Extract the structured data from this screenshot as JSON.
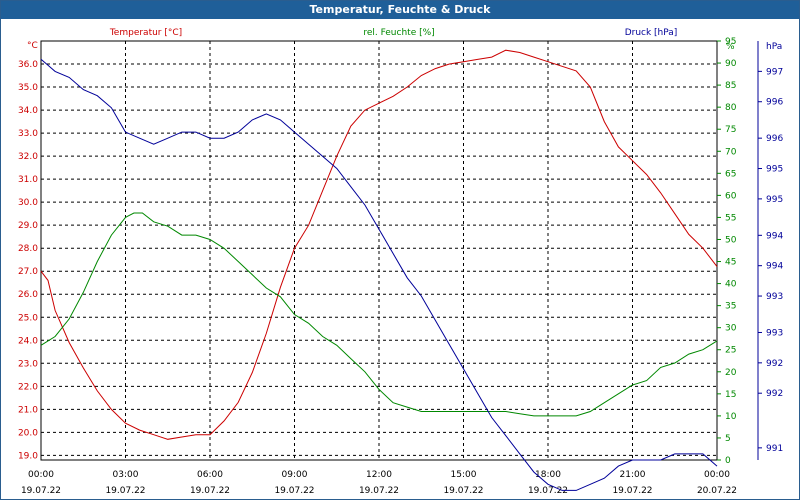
{
  "window": {
    "title": "Temperatur, Feuchte & Druck"
  },
  "chart_data": {
    "type": "line",
    "title": "Temperatur, Feuchte & Druck",
    "x_ticks": [
      {
        "time": "00:00",
        "date": "19.07.22"
      },
      {
        "time": "03:00",
        "date": "19.07.22"
      },
      {
        "time": "06:00",
        "date": "19.07.22"
      },
      {
        "time": "09:00",
        "date": "19.07.22"
      },
      {
        "time": "12:00",
        "date": "19.07.22"
      },
      {
        "time": "15:00",
        "date": "19.07.22"
      },
      {
        "time": "18:00",
        "date": "19.07.22"
      },
      {
        "time": "21:00",
        "date": "19.07.22"
      },
      {
        "time": "00:00",
        "date": "20.07.22"
      }
    ],
    "xlim": [
      0,
      24
    ],
    "axes": {
      "temperature": {
        "label": "Temperatur [°C]",
        "unit": "°C",
        "color": "#cc0000",
        "ylim": [
          18.8,
          37.0
        ],
        "ticks": [
          "19.0",
          "20.0",
          "21.0",
          "22.0",
          "23.0",
          "24.0",
          "25.0",
          "26.0",
          "27.0",
          "28.0",
          "29.0",
          "30.0",
          "31.0",
          "32.0",
          "33.0",
          "34.0",
          "35.0",
          "36.0"
        ]
      },
      "humidity": {
        "label": "rel. Feuchte [%]",
        "unit": "%",
        "color": "#008800",
        "ylim": [
          0,
          95
        ],
        "ticks": [
          "0",
          "5",
          "10",
          "15",
          "20",
          "25",
          "30",
          "35",
          "40",
          "45",
          "50",
          "55",
          "60",
          "65",
          "70",
          "75",
          "80",
          "85",
          "90",
          "95"
        ]
      },
      "pressure": {
        "label": "Druck [hPa]",
        "unit": "hPa",
        "color": "#000099",
        "ylim": [
          990.8,
          997.7
        ],
        "ticks": [
          {
            "label": "991",
            "v": 991.0
          },
          {
            "label": "992",
            "v": 991.9
          },
          {
            "label": "992",
            "v": 992.4
          },
          {
            "label": "993",
            "v": 992.9
          },
          {
            "label": "993",
            "v": 993.5
          },
          {
            "label": "994",
            "v": 994.0
          },
          {
            "label": "994",
            "v": 994.5
          },
          {
            "label": "995",
            "v": 995.1
          },
          {
            "label": "995",
            "v": 995.6
          },
          {
            "label": "996",
            "v": 996.1
          },
          {
            "label": "996",
            "v": 996.7
          },
          {
            "label": "997",
            "v": 997.2
          }
        ]
      }
    },
    "series": [
      {
        "name": "Temperatur [°C]",
        "axis": "temperature",
        "color": "#cc0000",
        "x": [
          0,
          0.25,
          0.5,
          1,
          1.5,
          2,
          2.5,
          3,
          3.5,
          4,
          4.5,
          5,
          5.5,
          6,
          6.5,
          7,
          7.5,
          8,
          8.5,
          9,
          9.5,
          10,
          10.5,
          11,
          11.5,
          12,
          12.5,
          13,
          13.5,
          14,
          14.5,
          15,
          15.5,
          16,
          16.5,
          17,
          17.5,
          18,
          18.5,
          19,
          19.5,
          20,
          20.5,
          21,
          21.5,
          22,
          22.5,
          23,
          23.5,
          24
        ],
        "values": [
          27.0,
          26.6,
          25.3,
          23.9,
          22.8,
          21.8,
          21.0,
          20.4,
          20.1,
          19.9,
          19.7,
          19.8,
          19.9,
          19.9,
          20.5,
          21.3,
          22.6,
          24.3,
          26.3,
          28.0,
          29.0,
          30.5,
          32.0,
          33.3,
          34.0,
          34.3,
          34.6,
          35.0,
          35.5,
          35.8,
          36.0,
          36.1,
          36.2,
          36.3,
          36.6,
          36.5,
          36.3,
          36.1,
          35.9,
          35.7,
          35.0,
          33.5,
          32.4,
          31.8,
          31.2,
          30.4,
          29.5,
          28.6,
          28.0,
          27.2
        ]
      },
      {
        "name": "rel. Feuchte [%]",
        "axis": "humidity",
        "color": "#008800",
        "x": [
          0,
          0.5,
          1,
          1.5,
          2,
          2.5,
          3,
          3.3,
          3.6,
          4,
          4.5,
          5,
          5.5,
          6,
          6.5,
          7,
          7.5,
          8,
          8.5,
          9,
          9.5,
          10,
          10.5,
          11,
          11.5,
          12,
          12.5,
          13,
          13.5,
          14,
          14.5,
          15,
          15.5,
          16,
          16.5,
          17,
          17.5,
          18,
          18.5,
          19,
          19.5,
          20,
          20.5,
          21,
          21.5,
          22,
          22.5,
          23,
          23.5,
          24
        ],
        "values": [
          26,
          28,
          32,
          38,
          45,
          51,
          55,
          56,
          56,
          54,
          53,
          51,
          51,
          50,
          48,
          45,
          42,
          39,
          37,
          33,
          31,
          28,
          26,
          23,
          20,
          16,
          13,
          12,
          11,
          11,
          11,
          11,
          11,
          11,
          11,
          10.5,
          10,
          10,
          10,
          10,
          11,
          13,
          15,
          17,
          18,
          21,
          22,
          24,
          25,
          27
        ]
      },
      {
        "name": "Druck [hPa]",
        "axis": "pressure",
        "color": "#000099",
        "x": [
          0,
          0.25,
          0.5,
          1,
          1.5,
          2,
          2.5,
          3,
          3.5,
          4,
          4.5,
          5,
          5.5,
          6,
          6.5,
          7,
          7.5,
          8,
          8.5,
          9,
          9.5,
          10,
          10.5,
          11,
          11.5,
          12,
          12.5,
          13,
          13.5,
          14,
          14.5,
          15,
          15.5,
          16,
          16.5,
          17,
          17.5,
          18,
          18.5,
          19,
          19.5,
          20,
          20.5,
          21,
          21.5,
          22,
          22.5,
          23,
          23.5,
          24
        ],
        "values": [
          997.4,
          997.3,
          997.2,
          997.1,
          996.9,
          996.8,
          996.6,
          996.2,
          996.1,
          996.0,
          996.1,
          996.2,
          996.2,
          996.1,
          996.1,
          996.2,
          996.4,
          996.5,
          996.4,
          996.2,
          996.0,
          995.8,
          995.6,
          995.3,
          995.0,
          994.6,
          994.2,
          993.8,
          993.5,
          993.1,
          992.7,
          992.3,
          991.9,
          991.5,
          991.2,
          990.9,
          990.6,
          990.4,
          990.3,
          990.3,
          990.4,
          990.5,
          990.7,
          990.8,
          990.8,
          990.8,
          990.9,
          990.9,
          990.9,
          990.7
        ]
      }
    ]
  }
}
